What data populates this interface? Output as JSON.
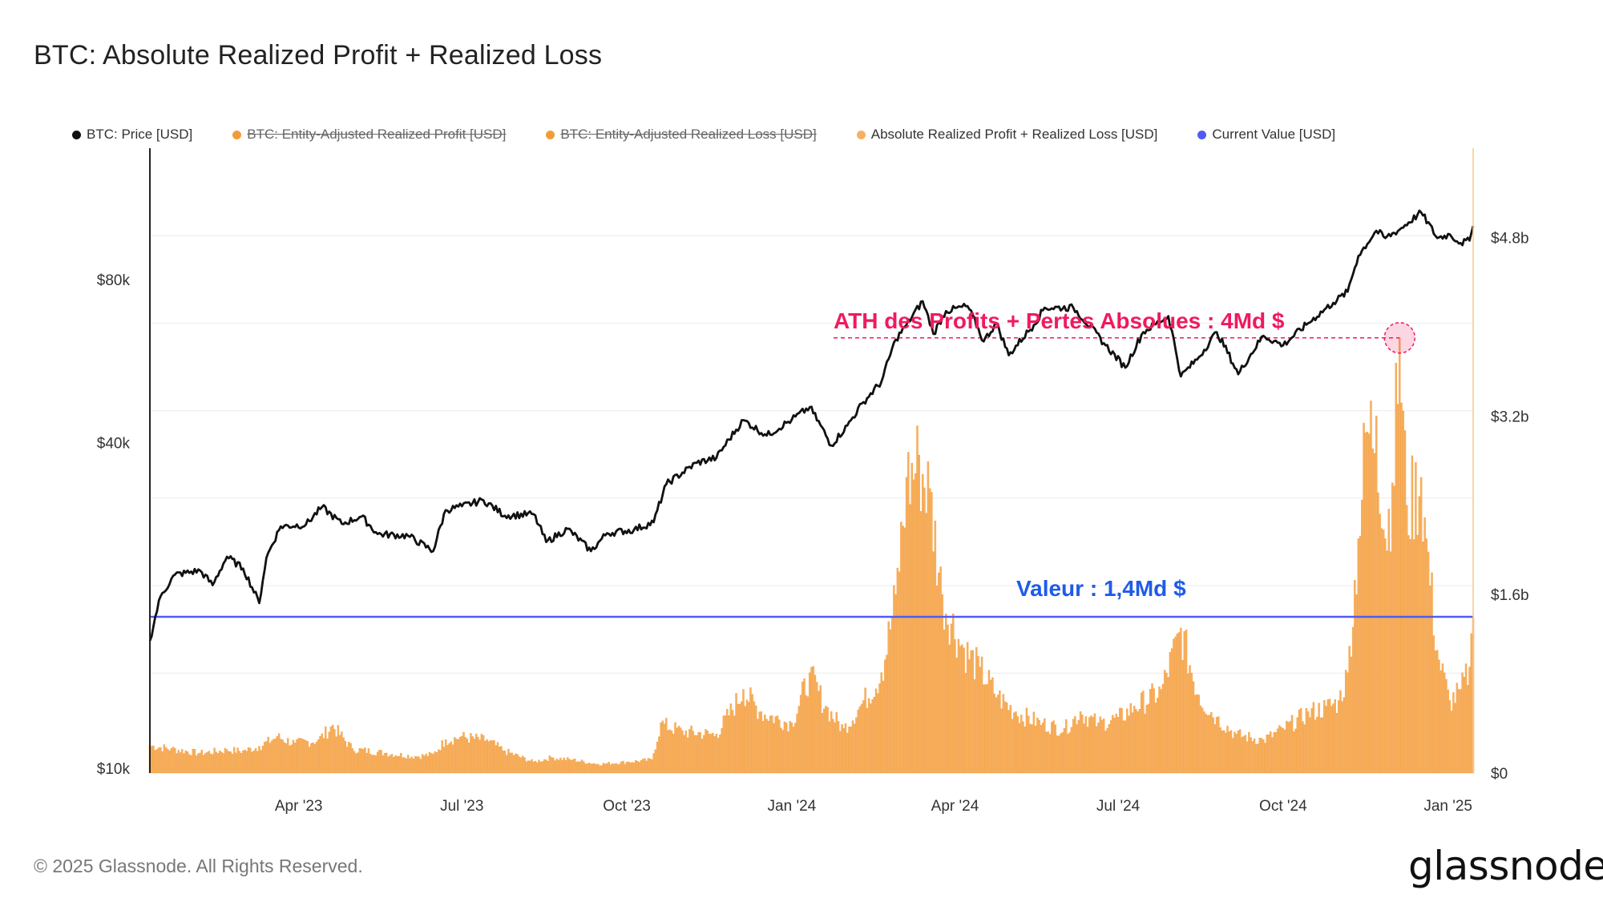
{
  "title": "BTC: Absolute Realized Profit + Realized Loss",
  "legend": [
    {
      "label": "BTC: Price [USD]",
      "color": "#111111",
      "active": true
    },
    {
      "label": "BTC: Entity-Adjusted Realized Profit [USD]",
      "color": "#f29c38",
      "active": false
    },
    {
      "label": "BTC: Entity-Adjusted Realized Loss [USD]",
      "color": "#f29c38",
      "active": false
    },
    {
      "label": "Absolute Realized Profit + Realized Loss [USD]",
      "color": "#f7b062",
      "active": true
    },
    {
      "label": "Current Value [USD]",
      "color": "#4f5bf2",
      "active": true
    }
  ],
  "footer": "© 2025 Glassnode. All Rights Reserved.",
  "brand": "glassnode",
  "annotations": {
    "ath": "ATH des Profits + Pertes Absolues : 4Md $",
    "current": "Valeur : 1,4Md $"
  },
  "colors": {
    "price": "#111111",
    "bars": "#f7b062",
    "bar_edge": "#f29c38",
    "current": "#4f5bf2",
    "ath": "#f01a5e",
    "current_text": "#1f5be8",
    "grid": "#ebebeb",
    "right_axis": "#f7c98a"
  },
  "chart_data": {
    "type": "bar+line",
    "title": "BTC: Absolute Realized Profit + Realized Loss",
    "x_start": "2023-01-08",
    "x_end": "2025-01-15",
    "x_ticks": [
      {
        "date": "2023-04-01",
        "label": "Apr '23"
      },
      {
        "date": "2023-07-01",
        "label": "Jul '23"
      },
      {
        "date": "2023-10-01",
        "label": "Oct '23"
      },
      {
        "date": "2024-01-01",
        "label": "Jan '24"
      },
      {
        "date": "2024-04-01",
        "label": "Apr '24"
      },
      {
        "date": "2024-07-01",
        "label": "Jul '24"
      },
      {
        "date": "2024-10-01",
        "label": "Oct '24"
      },
      {
        "date": "2025-01-01",
        "label": "Jan '25"
      }
    ],
    "left_axis": {
      "scale": "log",
      "ticks": [
        {
          "value": 10000,
          "label": "$10k"
        },
        {
          "value": 40000,
          "label": "$40k"
        },
        {
          "value": 80000,
          "label": "$80k"
        }
      ],
      "min": 9800,
      "max": 140000
    },
    "right_axis": {
      "scale": "linear",
      "ticks": [
        {
          "value": 0,
          "label": "$0"
        },
        {
          "value": 1.6,
          "label": "$1.6b"
        },
        {
          "value": 3.2,
          "label": "$3.2b"
        },
        {
          "value": 4.8,
          "label": "$4.8b"
        }
      ],
      "min": 0,
      "max": 5.6,
      "unit": "billion USD"
    },
    "current_value": 1.4,
    "ath_value": 3.9,
    "ath_date": "2024-12-05",
    "price_series": {
      "name": "BTC: Price [USD]",
      "points": [
        [
          "2023-01-08",
          17200
        ],
        [
          "2023-01-14",
          20800
        ],
        [
          "2023-01-22",
          22800
        ],
        [
          "2023-02-05",
          23200
        ],
        [
          "2023-02-12",
          21800
        ],
        [
          "2023-02-20",
          24600
        ],
        [
          "2023-03-01",
          23400
        ],
        [
          "2023-03-10",
          20200
        ],
        [
          "2023-03-14",
          24500
        ],
        [
          "2023-03-22",
          28000
        ],
        [
          "2023-04-05",
          28200
        ],
        [
          "2023-04-14",
          30400
        ],
        [
          "2023-04-25",
          28300
        ],
        [
          "2023-05-06",
          29200
        ],
        [
          "2023-05-15",
          27100
        ],
        [
          "2023-06-01",
          26900
        ],
        [
          "2023-06-15",
          25200
        ],
        [
          "2023-06-22",
          30000
        ],
        [
          "2023-07-01",
          30500
        ],
        [
          "2023-07-13",
          31300
        ],
        [
          "2023-07-25",
          29300
        ],
        [
          "2023-08-10",
          29500
        ],
        [
          "2023-08-17",
          26200
        ],
        [
          "2023-08-29",
          27700
        ],
        [
          "2023-09-11",
          25200
        ],
        [
          "2023-09-20",
          27200
        ],
        [
          "2023-10-05",
          27600
        ],
        [
          "2023-10-16",
          28500
        ],
        [
          "2023-10-23",
          33500
        ],
        [
          "2023-11-09",
          36700
        ],
        [
          "2023-11-20",
          37500
        ],
        [
          "2023-12-05",
          44000
        ],
        [
          "2023-12-18",
          41200
        ],
        [
          "2024-01-01",
          44100
        ],
        [
          "2024-01-11",
          46500
        ],
        [
          "2024-01-23",
          39500
        ],
        [
          "2024-02-01",
          43000
        ],
        [
          "2024-02-10",
          47500
        ],
        [
          "2024-02-20",
          51800
        ],
        [
          "2024-02-28",
          62000
        ],
        [
          "2024-03-05",
          66000
        ],
        [
          "2024-03-14",
          73000
        ],
        [
          "2024-03-20",
          63500
        ],
        [
          "2024-03-27",
          70000
        ],
        [
          "2024-04-08",
          71500
        ],
        [
          "2024-04-17",
          61500
        ],
        [
          "2024-04-24",
          66500
        ],
        [
          "2024-05-01",
          58000
        ],
        [
          "2024-05-15",
          66000
        ],
        [
          "2024-05-21",
          71000
        ],
        [
          "2024-06-06",
          71000
        ],
        [
          "2024-06-24",
          60500
        ],
        [
          "2024-07-05",
          55000
        ],
        [
          "2024-07-15",
          64000
        ],
        [
          "2024-07-29",
          68500
        ],
        [
          "2024-08-05",
          53000
        ],
        [
          "2024-08-15",
          57500
        ],
        [
          "2024-08-25",
          64000
        ],
        [
          "2024-09-06",
          53500
        ],
        [
          "2024-09-20",
          63000
        ],
        [
          "2024-10-01",
          60500
        ],
        [
          "2024-10-15",
          66500
        ],
        [
          "2024-10-29",
          72500
        ],
        [
          "2024-11-06",
          76000
        ],
        [
          "2024-11-12",
          88500
        ],
        [
          "2024-11-22",
          98500
        ],
        [
          "2024-11-27",
          95500
        ],
        [
          "2024-12-05",
          99000
        ],
        [
          "2024-12-17",
          106500
        ],
        [
          "2024-12-26",
          95500
        ],
        [
          "2025-01-02",
          97000
        ],
        [
          "2025-01-08",
          93500
        ],
        [
          "2025-01-13",
          94500
        ],
        [
          "2025-01-15",
          100500
        ]
      ]
    },
    "bar_series": {
      "name": "Absolute Realized Profit + Realized Loss [USD]",
      "unit": "billion USD",
      "points": [
        [
          "2023-01-08",
          0.25
        ],
        [
          "2023-01-20",
          0.22
        ],
        [
          "2023-02-05",
          0.18
        ],
        [
          "2023-02-20",
          0.21
        ],
        [
          "2023-03-01",
          0.2
        ],
        [
          "2023-03-10",
          0.24
        ],
        [
          "2023-03-20",
          0.33
        ],
        [
          "2023-03-30",
          0.27
        ],
        [
          "2023-04-12",
          0.3
        ],
        [
          "2023-04-20",
          0.43
        ],
        [
          "2023-05-01",
          0.22
        ],
        [
          "2023-05-20",
          0.18
        ],
        [
          "2023-06-05",
          0.15
        ],
        [
          "2023-06-15",
          0.17
        ],
        [
          "2023-06-22",
          0.3
        ],
        [
          "2023-07-01",
          0.33
        ],
        [
          "2023-07-15",
          0.3
        ],
        [
          "2023-07-25",
          0.2
        ],
        [
          "2023-08-10",
          0.1
        ],
        [
          "2023-08-20",
          0.14
        ],
        [
          "2023-09-01",
          0.12
        ],
        [
          "2023-09-15",
          0.08
        ],
        [
          "2023-10-01",
          0.1
        ],
        [
          "2023-10-15",
          0.12
        ],
        [
          "2023-10-20",
          0.45
        ],
        [
          "2023-11-01",
          0.38
        ],
        [
          "2023-11-20",
          0.35
        ],
        [
          "2023-12-05",
          0.75
        ],
        [
          "2023-12-15",
          0.55
        ],
        [
          "2024-01-01",
          0.45
        ],
        [
          "2024-01-11",
          0.9
        ],
        [
          "2024-01-20",
          0.6
        ],
        [
          "2024-01-30",
          0.4
        ],
        [
          "2024-02-10",
          0.65
        ],
        [
          "2024-02-20",
          0.9
        ],
        [
          "2024-02-28",
          1.6
        ],
        [
          "2024-03-05",
          2.65
        ],
        [
          "2024-03-12",
          2.85
        ],
        [
          "2024-03-18",
          2.55
        ],
        [
          "2024-03-25",
          1.6
        ],
        [
          "2024-04-05",
          1.15
        ],
        [
          "2024-04-15",
          0.95
        ],
        [
          "2024-04-25",
          0.7
        ],
        [
          "2024-05-05",
          0.55
        ],
        [
          "2024-05-20",
          0.45
        ],
        [
          "2024-06-01",
          0.4
        ],
        [
          "2024-06-10",
          0.55
        ],
        [
          "2024-06-20",
          0.45
        ],
        [
          "2024-07-01",
          0.5
        ],
        [
          "2024-07-10",
          0.6
        ],
        [
          "2024-07-25",
          0.75
        ],
        [
          "2024-08-05",
          1.3
        ],
        [
          "2024-08-15",
          0.7
        ],
        [
          "2024-08-25",
          0.5
        ],
        [
          "2024-09-05",
          0.35
        ],
        [
          "2024-09-20",
          0.3
        ],
        [
          "2024-10-01",
          0.4
        ],
        [
          "2024-10-15",
          0.55
        ],
        [
          "2024-10-25",
          0.6
        ],
        [
          "2024-11-01",
          0.65
        ],
        [
          "2024-11-06",
          0.9
        ],
        [
          "2024-11-12",
          2.1
        ],
        [
          "2024-11-16",
          3.05
        ],
        [
          "2024-11-22",
          3.2
        ],
        [
          "2024-11-27",
          2.1
        ],
        [
          "2024-12-01",
          2.6
        ],
        [
          "2024-12-05",
          3.9
        ],
        [
          "2024-12-09",
          2.4
        ],
        [
          "2024-12-17",
          2.65
        ],
        [
          "2024-12-20",
          2.1
        ],
        [
          "2024-12-26",
          1.1
        ],
        [
          "2025-01-02",
          0.65
        ],
        [
          "2025-01-08",
          0.75
        ],
        [
          "2025-01-13",
          0.95
        ],
        [
          "2025-01-15",
          1.4
        ]
      ]
    }
  }
}
